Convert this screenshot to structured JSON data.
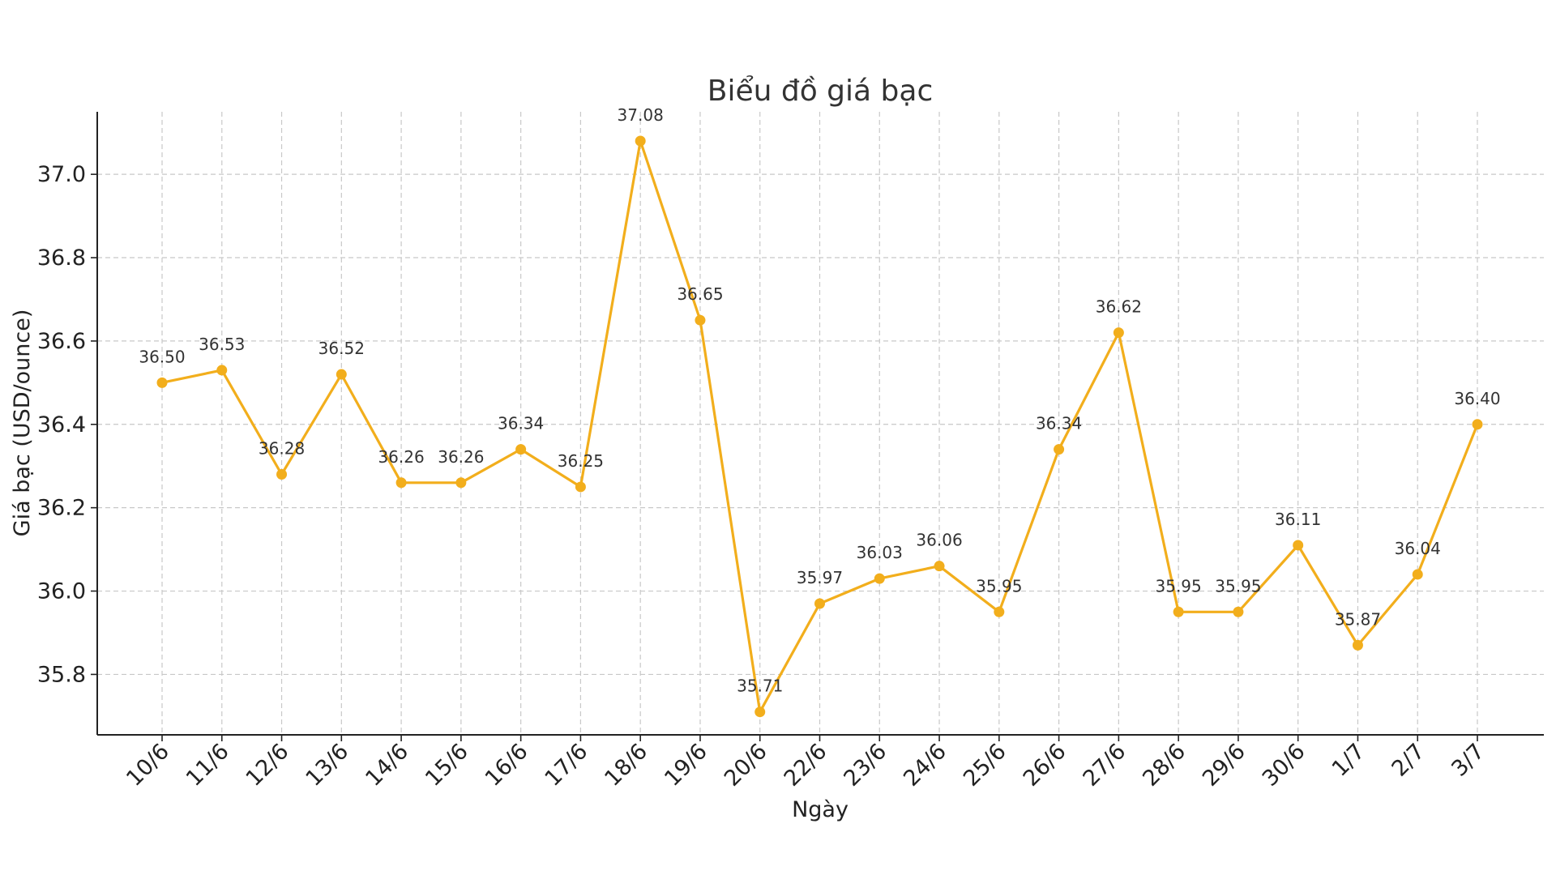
{
  "chart_data": {
    "type": "line",
    "title": "Biểu đồ giá bạc",
    "xlabel": "Ngày",
    "ylabel": "Giá bạc (USD/ounce)",
    "categories": [
      "10/6",
      "11/6",
      "12/6",
      "13/6",
      "14/6",
      "15/6",
      "16/6",
      "17/6",
      "18/6",
      "19/6",
      "20/6",
      "22/6",
      "23/6",
      "24/6",
      "25/6",
      "26/6",
      "27/6",
      "28/6",
      "29/6",
      "30/6",
      "1/7",
      "2/7",
      "3/7"
    ],
    "series": [
      {
        "values": [
          36.5,
          36.53,
          36.28,
          36.52,
          36.26,
          36.26,
          36.34,
          36.25,
          37.08,
          36.65,
          35.71,
          35.97,
          36.03,
          36.06,
          35.95,
          36.34,
          36.62,
          35.95,
          35.95,
          36.11,
          35.87,
          36.04,
          36.4
        ],
        "labels": [
          "36.50",
          "36.53",
          "36.28",
          "36.52",
          "36.26",
          "36.26",
          "36.34",
          "36.25",
          "37.08",
          "36.65",
          "35.71",
          "35.97",
          "36.03",
          "36.06",
          "35.95",
          "36.34",
          "36.62",
          "35.95",
          "35.95",
          "36.11",
          "35.87",
          "36.04",
          "36.40"
        ]
      }
    ],
    "yticks": [
      35.8,
      36.0,
      36.2,
      36.4,
      36.6,
      36.8,
      37.0
    ],
    "ytick_labels": [
      "35.8",
      "36.0",
      "36.2",
      "36.4",
      "36.6",
      "36.8",
      "37.0"
    ],
    "ylim": [
      35.655,
      37.15
    ],
    "grid": true,
    "marker": "circle",
    "line_color": "#F2AE1C",
    "rotated_x_labels": true
  }
}
